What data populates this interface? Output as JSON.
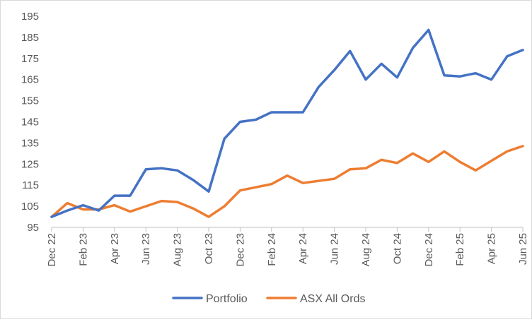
{
  "chart_data": {
    "type": "line",
    "title": "",
    "xlabel": "",
    "ylabel": "",
    "ylim": [
      95,
      195
    ],
    "yticks": [
      95,
      105,
      115,
      125,
      135,
      145,
      155,
      165,
      175,
      185,
      195
    ],
    "grid": false,
    "legend_position": "bottom",
    "x": [
      "Dec 22",
      "Jan 23",
      "Feb 23",
      "Mar 23",
      "Apr 23",
      "May 23",
      "Jun 23",
      "Jul 23",
      "Aug 23",
      "Sep 23",
      "Oct 23",
      "Nov 23",
      "Dec 23",
      "Jan 24",
      "Feb 24",
      "Mar 24",
      "Apr 24",
      "May 24",
      "Jun 24",
      "Jul 24",
      "Aug 24",
      "Sep 24",
      "Oct 24",
      "Nov 24",
      "Dec 24",
      "Jan 25",
      "Feb 25",
      "Mar 25",
      "Apr 25",
      "May 25",
      "Jun 25"
    ],
    "x_tick_labels": [
      "Dec 22",
      "Feb 23",
      "Apr 23",
      "Jun 23",
      "Aug 23",
      "Oct 23",
      "Dec 23",
      "Feb 24",
      "Apr 24",
      "Jun 24",
      "Aug 24",
      "Oct 24",
      "Dec 24",
      "Feb 25",
      "Apr 25",
      "Jun 25"
    ],
    "series": [
      {
        "name": "Portfolio",
        "color": "#4472c4",
        "values": [
          100,
          103,
          105.5,
          103,
          110,
          110,
          122.5,
          123,
          122,
          117.5,
          112,
          137,
          145,
          146,
          149.5,
          149.5,
          149.5,
          161.5,
          169.5,
          178.5,
          165,
          172.5,
          166,
          180,
          188.5,
          167,
          166.5,
          168,
          165,
          176,
          179
        ]
      },
      {
        "name": "ASX All Ords",
        "color": "#ed7d31",
        "values": [
          100,
          106.5,
          103.5,
          103.5,
          105.5,
          102.5,
          105,
          107.5,
          107,
          104,
          100,
          105,
          112.5,
          114,
          115.5,
          119.5,
          116,
          117,
          118,
          122.5,
          123,
          127,
          125.5,
          130,
          126,
          131,
          126,
          122,
          126.5,
          131,
          133.5
        ]
      }
    ]
  }
}
